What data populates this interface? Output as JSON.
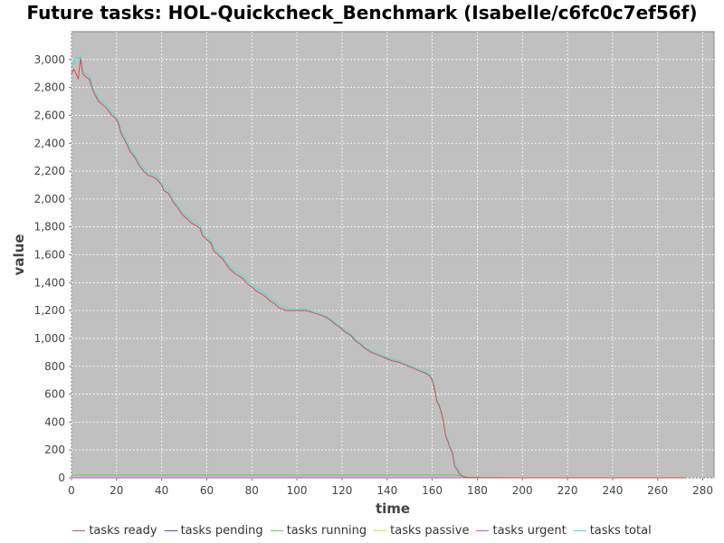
{
  "chart_data": {
    "type": "line",
    "title": "Future tasks: HOL-Quickcheck_Benchmark (Isabelle/c6fc0c7ef56f)",
    "xlabel": "time",
    "ylabel": "value",
    "xlim": [
      0,
      285
    ],
    "ylim": [
      0,
      3200
    ],
    "xticks": [
      0,
      20,
      40,
      60,
      80,
      100,
      120,
      140,
      160,
      180,
      200,
      220,
      240,
      260,
      280
    ],
    "yticks": [
      0,
      200,
      400,
      600,
      800,
      1000,
      1200,
      1400,
      1600,
      1800,
      2000,
      2200,
      2400,
      2600,
      2800,
      3000
    ],
    "ytick_labels": [
      "0",
      "200",
      "400",
      "600",
      "800",
      "1,000",
      "1,200",
      "1,400",
      "1,600",
      "1,800",
      "2,000",
      "2,200",
      "2,400",
      "2,600",
      "2,800",
      "3,000"
    ],
    "grid": true,
    "legend_position": "bottom",
    "plot_background": "#c0c0c0",
    "series": [
      {
        "name": "tasks ready",
        "color": "#dd4a4a",
        "x": [
          0,
          1,
          2,
          3,
          4,
          5,
          6,
          8,
          9,
          10,
          12,
          15,
          18,
          20,
          21,
          22,
          24,
          26,
          28,
          30,
          32,
          34,
          36,
          38,
          40,
          41,
          43,
          45,
          47,
          49,
          51,
          53,
          55,
          57,
          58,
          60,
          62,
          63,
          65,
          67,
          70,
          72,
          74,
          76,
          78,
          80,
          82,
          84,
          86,
          88,
          90,
          92,
          95,
          97,
          100,
          104,
          106,
          108,
          110,
          113,
          115,
          117,
          119,
          121,
          124,
          126,
          128,
          130,
          133,
          136,
          139,
          142,
          145,
          148,
          151,
          154,
          157,
          159,
          160,
          161,
          162,
          163,
          164,
          165,
          166,
          167,
          168,
          169,
          170,
          171,
          172,
          173,
          174,
          175,
          176,
          178,
          180,
          190,
          200,
          220,
          240,
          260,
          272
        ],
        "y": [
          2900,
          2930,
          2900,
          2860,
          3010,
          2900,
          2880,
          2860,
          2800,
          2760,
          2700,
          2660,
          2600,
          2570,
          2530,
          2470,
          2410,
          2340,
          2300,
          2240,
          2200,
          2170,
          2160,
          2140,
          2100,
          2060,
          2040,
          1980,
          1940,
          1890,
          1860,
          1830,
          1810,
          1790,
          1740,
          1710,
          1680,
          1630,
          1600,
          1570,
          1500,
          1470,
          1450,
          1430,
          1390,
          1370,
          1340,
          1320,
          1300,
          1270,
          1250,
          1220,
          1200,
          1200,
          1200,
          1200,
          1190,
          1180,
          1170,
          1150,
          1130,
          1100,
          1080,
          1050,
          1020,
          980,
          960,
          930,
          900,
          880,
          860,
          840,
          830,
          810,
          790,
          770,
          750,
          730,
          700,
          640,
          550,
          520,
          470,
          400,
          300,
          260,
          210,
          180,
          80,
          60,
          30,
          15,
          8,
          5,
          3,
          2,
          1,
          0,
          0,
          0,
          0,
          0,
          0
        ]
      },
      {
        "name": "tasks pending",
        "color": "#4a4add",
        "x": [
          0,
          272
        ],
        "y": [
          0,
          0
        ]
      },
      {
        "name": "tasks running",
        "color": "#4add4a",
        "x": [
          0,
          3,
          5,
          170,
          172,
          174,
          176,
          200,
          272
        ],
        "y": [
          18,
          20,
          20,
          20,
          16,
          10,
          2,
          0,
          0
        ]
      },
      {
        "name": "tasks passive",
        "color": "#dddd4a",
        "x": [
          0,
          272
        ],
        "y": [
          0,
          0
        ]
      },
      {
        "name": "tasks urgent",
        "color": "#dd4add",
        "x": [
          0,
          272
        ],
        "y": [
          0,
          0
        ]
      },
      {
        "name": "tasks total",
        "color": "#4adddd",
        "x": [
          0,
          1,
          2,
          3,
          4,
          5,
          6,
          8,
          9,
          10,
          12,
          15,
          18,
          20,
          21,
          22,
          24,
          26,
          28,
          30,
          32,
          34,
          36,
          38,
          40,
          41,
          43,
          45,
          47,
          49,
          51,
          53,
          55,
          57,
          58,
          60,
          62,
          63,
          65,
          67,
          70,
          72,
          74,
          76,
          78,
          80,
          82,
          84,
          86,
          88,
          90,
          92,
          95,
          97,
          100,
          104,
          106,
          108,
          110,
          113,
          115,
          117,
          119,
          121,
          124,
          126,
          128,
          130,
          133,
          136,
          139,
          142,
          145,
          148,
          151,
          154,
          157,
          159,
          160,
          161,
          162,
          163,
          164,
          165,
          166,
          167,
          168,
          169,
          170,
          171,
          172,
          173,
          174,
          175,
          176,
          178,
          180,
          190,
          200
        ],
        "y": [
          2960,
          2970,
          3020,
          3000,
          3030,
          2920,
          2900,
          2880,
          2820,
          2780,
          2720,
          2680,
          2620,
          2590,
          2550,
          2490,
          2430,
          2360,
          2320,
          2260,
          2220,
          2190,
          2180,
          2160,
          2120,
          2080,
          2060,
          2000,
          1960,
          1910,
          1880,
          1850,
          1830,
          1810,
          1760,
          1730,
          1700,
          1650,
          1620,
          1590,
          1520,
          1490,
          1470,
          1450,
          1410,
          1390,
          1360,
          1340,
          1320,
          1290,
          1270,
          1240,
          1220,
          1210,
          1210,
          1210,
          1200,
          1190,
          1180,
          1160,
          1140,
          1110,
          1090,
          1060,
          1030,
          990,
          970,
          940,
          910,
          890,
          870,
          850,
          840,
          820,
          800,
          780,
          760,
          740,
          710,
          650,
          560,
          530,
          480,
          410,
          310,
          270,
          220,
          190,
          100,
          80,
          50,
          25,
          10,
          5,
          3,
          2,
          1,
          0,
          0
        ]
      }
    ]
  }
}
